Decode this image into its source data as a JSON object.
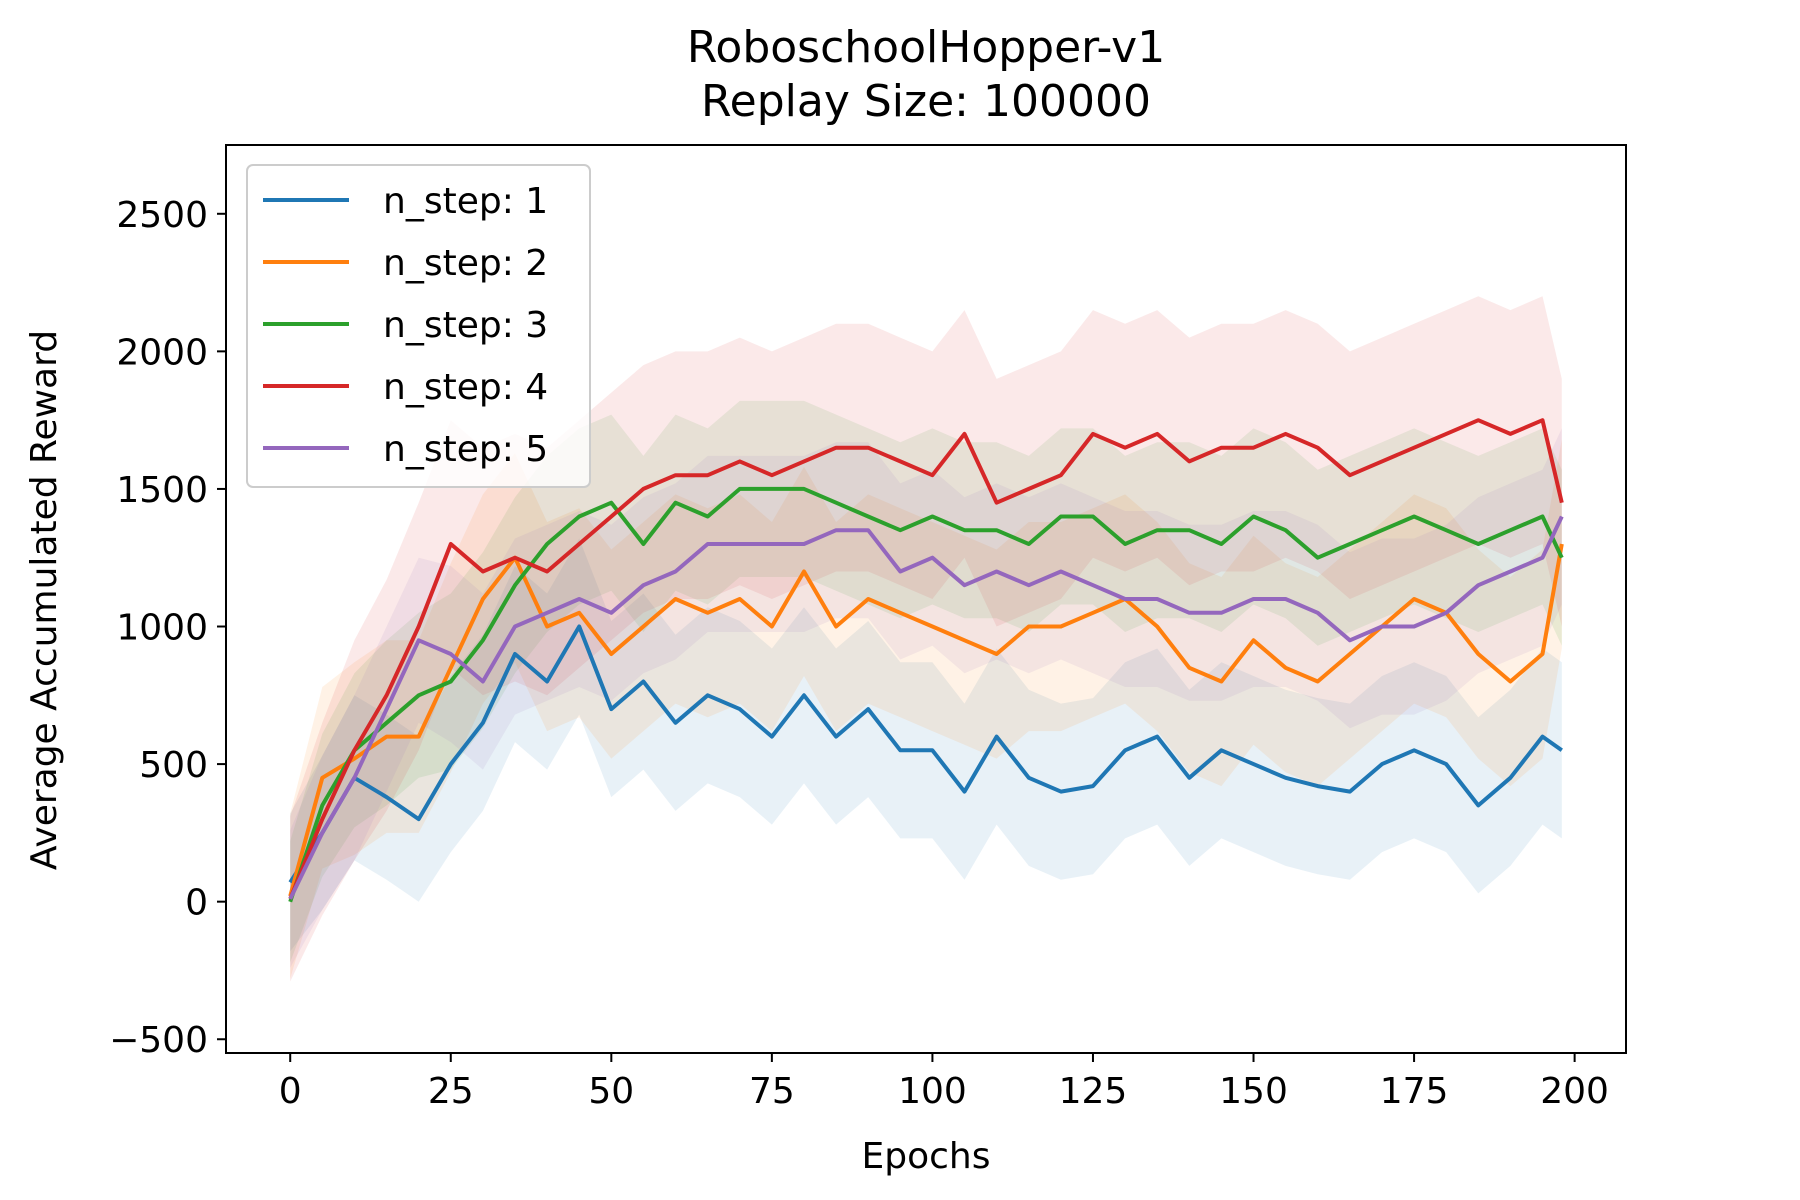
{
  "chart_data": {
    "type": "line",
    "title": "RoboschoolHopper-v1",
    "subtitle": "Replay Size: 100000",
    "xlabel": "Epochs",
    "ylabel": "Average Accumulated Reward",
    "xlim": [
      -10,
      208
    ],
    "ylim": [
      -550,
      2750
    ],
    "xticks": [
      0,
      25,
      50,
      75,
      100,
      125,
      150,
      175,
      200
    ],
    "yticks": [
      -500,
      0,
      500,
      1000,
      1500,
      2000,
      2500
    ],
    "xtick_labels": [
      "0",
      "25",
      "50",
      "75",
      "100",
      "125",
      "150",
      "175",
      "200"
    ],
    "ytick_labels": [
      "−500",
      "0",
      "500",
      "1000",
      "1500",
      "2000",
      "2500"
    ],
    "grid": false,
    "legend_position": "upper-left",
    "x": [
      0,
      5,
      10,
      15,
      20,
      25,
      30,
      35,
      40,
      45,
      50,
      55,
      60,
      65,
      70,
      75,
      80,
      85,
      90,
      95,
      100,
      105,
      110,
      115,
      120,
      125,
      130,
      135,
      140,
      145,
      150,
      155,
      160,
      165,
      170,
      175,
      180,
      185,
      190,
      195,
      198
    ],
    "series": [
      {
        "name": "n_step: 1",
        "color": "#1f77b4",
        "values": [
          70,
          250,
          450,
          380,
          300,
          500,
          650,
          900,
          800,
          1000,
          700,
          800,
          650,
          750,
          700,
          600,
          750,
          600,
          700,
          550,
          550,
          400,
          600,
          450,
          400,
          420,
          550,
          600,
          450,
          550,
          500,
          450,
          420,
          400,
          500,
          550,
          500,
          350,
          450,
          600,
          550
        ],
        "band": [
          250,
          280,
          300,
          300,
          300,
          320,
          320,
          320,
          320,
          320,
          320,
          320,
          320,
          320,
          320,
          320,
          320,
          320,
          320,
          320,
          320,
          320,
          320,
          320,
          320,
          320,
          320,
          320,
          320,
          320,
          320,
          320,
          320,
          320,
          320,
          320,
          320,
          320,
          320,
          320,
          320
        ]
      },
      {
        "name": "n_step: 2",
        "color": "#ff7f0e",
        "values": [
          20,
          450,
          520,
          600,
          600,
          850,
          1100,
          1250,
          1000,
          1050,
          900,
          1000,
          1100,
          1050,
          1100,
          1000,
          1200,
          1000,
          1100,
          1050,
          1000,
          950,
          900,
          1000,
          1000,
          1050,
          1100,
          1000,
          850,
          800,
          950,
          850,
          800,
          900,
          1000,
          1100,
          1050,
          900,
          800,
          900,
          1300
        ],
        "band": [
          300,
          330,
          350,
          350,
          350,
          380,
          380,
          380,
          380,
          380,
          380,
          380,
          380,
          380,
          380,
          380,
          380,
          380,
          380,
          380,
          380,
          380,
          380,
          380,
          380,
          380,
          380,
          380,
          380,
          380,
          380,
          380,
          380,
          380,
          380,
          380,
          380,
          380,
          380,
          380,
          380
        ]
      },
      {
        "name": "n_step: 3",
        "color": "#2ca02c",
        "values": [
          0,
          350,
          550,
          650,
          750,
          800,
          950,
          1150,
          1300,
          1400,
          1450,
          1300,
          1450,
          1400,
          1500,
          1500,
          1500,
          1450,
          1400,
          1350,
          1400,
          1350,
          1350,
          1300,
          1400,
          1400,
          1300,
          1350,
          1350,
          1300,
          1400,
          1350,
          1250,
          1300,
          1350,
          1400,
          1350,
          1300,
          1350,
          1400,
          1250
        ],
        "band": [
          220,
          260,
          280,
          300,
          300,
          320,
          320,
          320,
          320,
          320,
          320,
          320,
          320,
          320,
          320,
          320,
          320,
          320,
          320,
          320,
          320,
          320,
          320,
          320,
          320,
          320,
          320,
          320,
          320,
          320,
          320,
          320,
          320,
          320,
          320,
          320,
          320,
          320,
          320,
          320,
          320
        ]
      },
      {
        "name": "n_step: 4",
        "color": "#d62728",
        "values": [
          10,
          300,
          550,
          750,
          1000,
          1300,
          1200,
          1250,
          1200,
          1300,
          1400,
          1500,
          1550,
          1550,
          1600,
          1550,
          1600,
          1650,
          1650,
          1600,
          1550,
          1700,
          1450,
          1500,
          1550,
          1700,
          1650,
          1700,
          1600,
          1650,
          1650,
          1700,
          1650,
          1550,
          1600,
          1650,
          1700,
          1750,
          1700,
          1750,
          1450
        ],
        "band": [
          300,
          350,
          400,
          420,
          450,
          450,
          450,
          450,
          450,
          450,
          450,
          450,
          450,
          450,
          450,
          450,
          450,
          450,
          450,
          450,
          450,
          450,
          450,
          450,
          450,
          450,
          450,
          450,
          450,
          450,
          450,
          450,
          450,
          450,
          450,
          450,
          450,
          450,
          450,
          450,
          450
        ]
      },
      {
        "name": "n_step: 5",
        "color": "#9467bd",
        "values": [
          10,
          250,
          450,
          700,
          950,
          900,
          800,
          1000,
          1050,
          1100,
          1050,
          1150,
          1200,
          1300,
          1300,
          1300,
          1300,
          1350,
          1350,
          1200,
          1250,
          1150,
          1200,
          1150,
          1200,
          1150,
          1100,
          1100,
          1050,
          1050,
          1100,
          1100,
          1050,
          950,
          1000,
          1000,
          1050,
          1150,
          1200,
          1250,
          1400
        ],
        "band": [
          250,
          280,
          300,
          300,
          300,
          320,
          320,
          320,
          320,
          320,
          320,
          320,
          320,
          320,
          320,
          320,
          320,
          320,
          320,
          320,
          320,
          320,
          320,
          320,
          320,
          320,
          320,
          320,
          320,
          320,
          320,
          320,
          320,
          320,
          320,
          320,
          320,
          320,
          320,
          320,
          320
        ]
      }
    ]
  }
}
